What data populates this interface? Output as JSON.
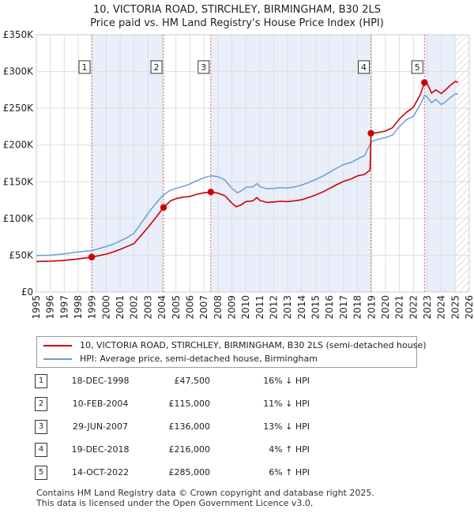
{
  "title_line1": "10, VICTORIA ROAD, STIRCHLEY, BIRMINGHAM, B30 2LS",
  "title_line2": "Price paid vs. HM Land Registry's House Price Index (HPI)",
  "chart_data": {
    "type": "line",
    "x_range": [
      1995,
      2026
    ],
    "ylim": [
      0,
      350000
    ],
    "y_ticks": [
      {
        "value": 0,
        "label": "£0"
      },
      {
        "value": 50000,
        "label": "£50K"
      },
      {
        "value": 100000,
        "label": "£100K"
      },
      {
        "value": 150000,
        "label": "£150K"
      },
      {
        "value": 200000,
        "label": "£200K"
      },
      {
        "value": 250000,
        "label": "£250K"
      },
      {
        "value": 300000,
        "label": "£300K"
      },
      {
        "value": 350000,
        "label": "£350K"
      }
    ],
    "x_ticks": [
      "1995",
      "1996",
      "1997",
      "1998",
      "1999",
      "2000",
      "2001",
      "2002",
      "2003",
      "2004",
      "2005",
      "2006",
      "2007",
      "2008",
      "2009",
      "2010",
      "2011",
      "2012",
      "2013",
      "2014",
      "2015",
      "2016",
      "2017",
      "2018",
      "2019",
      "2020",
      "2021",
      "2022",
      "2023",
      "2024",
      "2025",
      "2026"
    ],
    "forecast_start": 2025.0,
    "series": [
      {
        "name": "10, VICTORIA ROAD, STIRCHLEY, BIRMINGHAM, B30 2LS (semi-detached house)",
        "color": "#cc0000",
        "points": [
          [
            1995.0,
            41500
          ],
          [
            1996.0,
            42000
          ],
          [
            1997.0,
            43000
          ],
          [
            1998.0,
            45000
          ],
          [
            1998.96,
            47500
          ],
          [
            1999.5,
            49500
          ],
          [
            2000.0,
            51500
          ],
          [
            2000.5,
            54500
          ],
          [
            2001.0,
            58000
          ],
          [
            2001.5,
            62000
          ],
          [
            2002.0,
            66000
          ],
          [
            2002.5,
            77000
          ],
          [
            2003.0,
            88000
          ],
          [
            2003.5,
            100000
          ],
          [
            2004.11,
            115000
          ],
          [
            2004.6,
            124000
          ],
          [
            2005.0,
            127000
          ],
          [
            2005.5,
            129000
          ],
          [
            2006.0,
            130000
          ],
          [
            2006.5,
            133000
          ],
          [
            2007.0,
            135000
          ],
          [
            2007.49,
            136000
          ],
          [
            2008.0,
            134500
          ],
          [
            2008.5,
            131000
          ],
          [
            2009.0,
            121000
          ],
          [
            2009.3,
            116000
          ],
          [
            2009.7,
            119000
          ],
          [
            2010.0,
            123000
          ],
          [
            2010.5,
            124000
          ],
          [
            2010.8,
            128500
          ],
          [
            2011.0,
            124500
          ],
          [
            2011.5,
            122000
          ],
          [
            2012.0,
            122500
          ],
          [
            2012.5,
            123500
          ],
          [
            2013.0,
            123000
          ],
          [
            2013.5,
            124000
          ],
          [
            2014.0,
            125500
          ],
          [
            2014.5,
            128500
          ],
          [
            2015.0,
            132000
          ],
          [
            2015.5,
            136000
          ],
          [
            2016.0,
            141000
          ],
          [
            2016.5,
            146000
          ],
          [
            2017.0,
            150500
          ],
          [
            2017.5,
            153500
          ],
          [
            2018.0,
            158000
          ],
          [
            2018.5,
            160000
          ],
          [
            2018.9,
            166000
          ],
          [
            2018.96,
            216000
          ],
          [
            2019.5,
            217000
          ],
          [
            2020.0,
            219000
          ],
          [
            2020.5,
            223500
          ],
          [
            2021.0,
            235500
          ],
          [
            2021.5,
            244500
          ],
          [
            2022.0,
            251500
          ],
          [
            2022.5,
            268500
          ],
          [
            2022.79,
            285000
          ],
          [
            2023.0,
            283000
          ],
          [
            2023.3,
            270500
          ],
          [
            2023.6,
            275000
          ],
          [
            2024.0,
            270000
          ],
          [
            2024.3,
            275000
          ],
          [
            2024.6,
            280500
          ],
          [
            2025.0,
            286500
          ],
          [
            2025.2,
            285000
          ]
        ]
      },
      {
        "name": "HPI: Average price, semi-detached house, Birmingham",
        "color": "#6a9ed4",
        "points": [
          [
            1995.0,
            49500
          ],
          [
            1996.0,
            50000
          ],
          [
            1997.0,
            52000
          ],
          [
            1998.0,
            54500
          ],
          [
            1999.0,
            56500
          ],
          [
            1999.5,
            59000
          ],
          [
            2000.0,
            62000
          ],
          [
            2000.5,
            65000
          ],
          [
            2001.0,
            69500
          ],
          [
            2001.5,
            74000
          ],
          [
            2002.0,
            80000
          ],
          [
            2002.5,
            93500
          ],
          [
            2003.0,
            107000
          ],
          [
            2003.5,
            119500
          ],
          [
            2004.0,
            130000
          ],
          [
            2004.5,
            137500
          ],
          [
            2005.0,
            141000
          ],
          [
            2005.5,
            143500
          ],
          [
            2006.0,
            147000
          ],
          [
            2006.5,
            151500
          ],
          [
            2007.0,
            155500
          ],
          [
            2007.5,
            158000
          ],
          [
            2008.0,
            157000
          ],
          [
            2008.5,
            152500
          ],
          [
            2009.0,
            141000
          ],
          [
            2009.4,
            135000
          ],
          [
            2009.8,
            139000
          ],
          [
            2010.0,
            142500
          ],
          [
            2010.5,
            143000
          ],
          [
            2010.8,
            147500
          ],
          [
            2011.0,
            143500
          ],
          [
            2011.5,
            140500
          ],
          [
            2012.0,
            141000
          ],
          [
            2012.5,
            142000
          ],
          [
            2013.0,
            141500
          ],
          [
            2013.5,
            143000
          ],
          [
            2014.0,
            145500
          ],
          [
            2014.5,
            149000
          ],
          [
            2015.0,
            153000
          ],
          [
            2015.5,
            157500
          ],
          [
            2016.0,
            163000
          ],
          [
            2016.5,
            168500
          ],
          [
            2017.0,
            173500
          ],
          [
            2017.5,
            176000
          ],
          [
            2018.0,
            181000
          ],
          [
            2018.5,
            185500
          ],
          [
            2019.0,
            205000
          ],
          [
            2019.5,
            208000
          ],
          [
            2020.0,
            210000
          ],
          [
            2020.5,
            213500
          ],
          [
            2021.0,
            225000
          ],
          [
            2021.5,
            234500
          ],
          [
            2022.0,
            239000
          ],
          [
            2022.5,
            255000
          ],
          [
            2022.8,
            268000
          ],
          [
            2023.0,
            265000
          ],
          [
            2023.3,
            257500
          ],
          [
            2023.6,
            262000
          ],
          [
            2024.0,
            255000
          ],
          [
            2024.3,
            258500
          ],
          [
            2024.6,
            264000
          ],
          [
            2025.0,
            269500
          ],
          [
            2025.2,
            269000
          ]
        ]
      }
    ],
    "sales": [
      {
        "label": "1",
        "x": 1998.96,
        "price": 47500
      },
      {
        "label": "2",
        "x": 2004.11,
        "price": 115000
      },
      {
        "label": "3",
        "x": 2007.49,
        "price": 136000
      },
      {
        "label": "4",
        "x": 2018.96,
        "price": 216000
      },
      {
        "label": "5",
        "x": 2022.79,
        "price": 285000
      }
    ]
  },
  "legend": {
    "property_label": "10, VICTORIA ROAD, STIRCHLEY, BIRMINGHAM, B30 2LS (semi-detached house)",
    "hpi_label": "HPI: Average price, semi-detached house, Birmingham"
  },
  "transactions": [
    {
      "num": "1",
      "date": "18-DEC-1998",
      "price": "£47,500",
      "hpi": "16% ↓ HPI"
    },
    {
      "num": "2",
      "date": "10-FEB-2004",
      "price": "£115,000",
      "hpi": "11% ↓ HPI"
    },
    {
      "num": "3",
      "date": "29-JUN-2007",
      "price": "£136,000",
      "hpi": "13% ↓ HPI"
    },
    {
      "num": "4",
      "date": "19-DEC-2018",
      "price": "£216,000",
      "hpi": "4% ↑ HPI"
    },
    {
      "num": "5",
      "date": "14-OCT-2022",
      "price": "£285,000",
      "hpi": "6% ↑ HPI"
    }
  ],
  "footer_line1": "Contains HM Land Registry data © Crown copyright and database right 2025.",
  "footer_line2": "This data is licensed under the Open Government Licence v3.0."
}
